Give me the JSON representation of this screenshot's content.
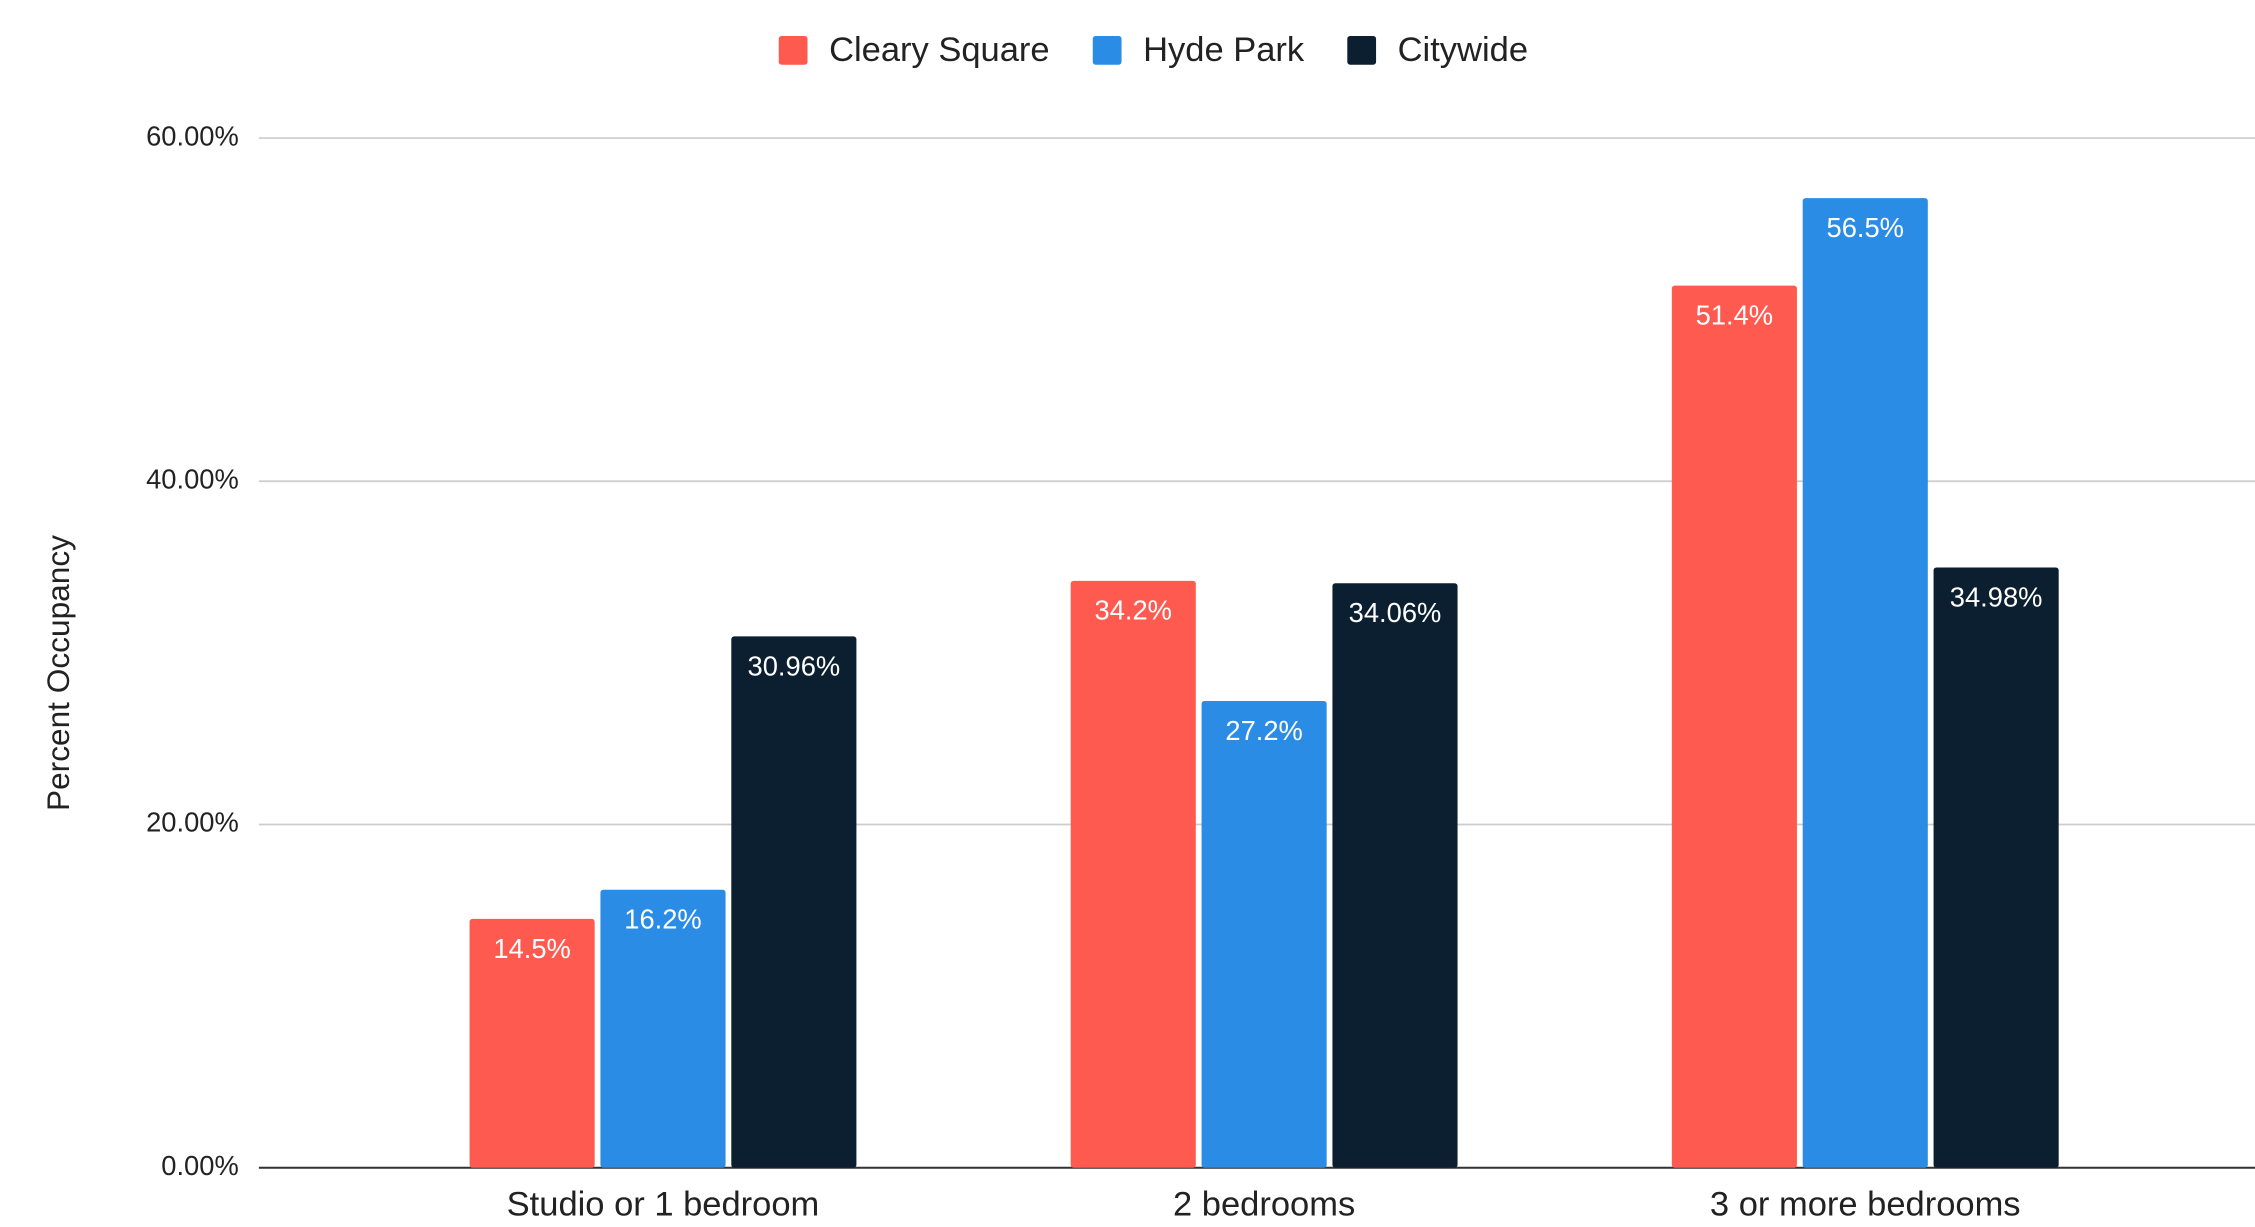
{
  "chart_data": {
    "type": "bar",
    "y_label": "Percent Occupancy",
    "categories": [
      "Studio or 1 bedroom",
      "2 bedrooms",
      "3 or more bedrooms"
    ],
    "series": [
      {
        "name": "Cleary Square",
        "color": "#ff5a4f",
        "values": [
          14.5,
          34.2,
          51.4
        ],
        "value_labels": [
          "14.5%",
          "34.2%",
          "51.4%"
        ]
      },
      {
        "name": "Hyde Park",
        "color": "#2a8ce4",
        "values": [
          16.2,
          27.2,
          56.5
        ],
        "value_labels": [
          "16.2%",
          "27.2%",
          "56.5%"
        ]
      },
      {
        "name": "Citywide",
        "color": "#0b1f30",
        "values": [
          30.96,
          34.06,
          34.98
        ],
        "value_labels": [
          "30.96%",
          "34.06%",
          "34.98%"
        ]
      }
    ],
    "ylim": [
      0,
      60
    ],
    "yticks": [
      {
        "value": 0,
        "label": "0.00%"
      },
      {
        "value": 20,
        "label": "20.00%"
      },
      {
        "value": 40,
        "label": "40.00%"
      },
      {
        "value": 60,
        "label": "60.00%"
      }
    ],
    "grid": true,
    "legend": "top"
  }
}
